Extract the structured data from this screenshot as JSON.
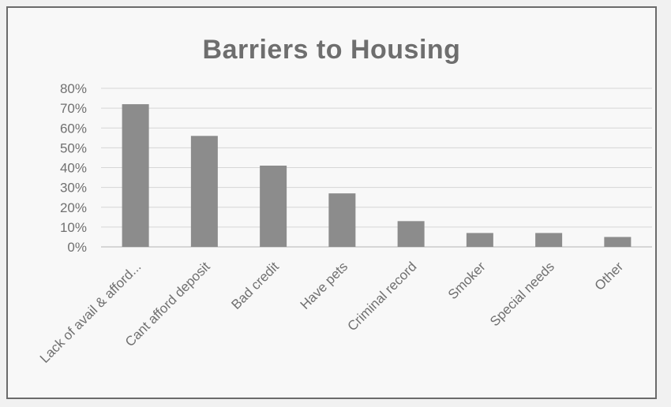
{
  "chart_data": {
    "type": "bar",
    "title": "Barriers to Housing",
    "categories": [
      "Lack of avail & afford...",
      "Cant afford deposit",
      "Bad credit",
      "Have pets",
      "Criminal record",
      "Smoker",
      "Special needs",
      "Other"
    ],
    "values": [
      72,
      56,
      41,
      27,
      13,
      7,
      7,
      5
    ],
    "ylim": [
      0,
      80
    ],
    "yticks": [
      "0%",
      "10%",
      "20%",
      "30%",
      "40%",
      "50%",
      "60%",
      "70%",
      "80%"
    ],
    "grid": true,
    "bar_color": "#8c8c8c",
    "xlabel": "",
    "ylabel": ""
  }
}
